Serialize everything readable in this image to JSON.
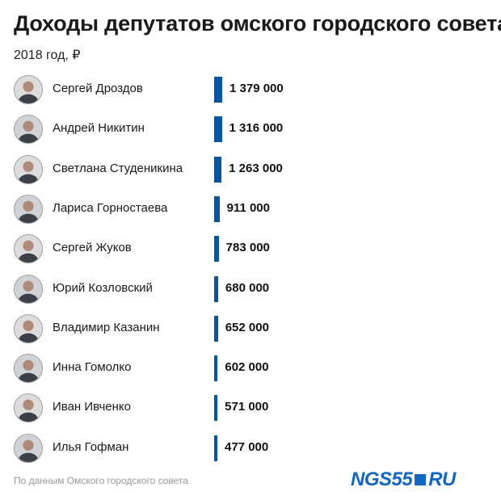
{
  "header": {
    "title": "Доходы депутатов омского городского совета",
    "subtitle": "2018 год, ₽"
  },
  "chart_data": {
    "type": "bar",
    "orientation": "horizontal",
    "title": "Доходы депутатов омского городского совета",
    "subtitle": "2018 год, ₽",
    "categories": [
      "Сергей Дроздов",
      "Андрей Никитин",
      "Светлана Студеникина",
      "Лариса Горностаева",
      "Сергей Жуков",
      "Юрий Козловский",
      "Владимир Казанин",
      "Инна Гомолко",
      "Иван Ивченко",
      "Илья Гофман"
    ],
    "values": [
      1379000,
      1316000,
      1263000,
      911000,
      783000,
      680000,
      652000,
      602000,
      571000,
      477000
    ],
    "value_labels": [
      "1 379 000",
      "1 316 000",
      "1 263 000",
      "911 000",
      "783 000",
      "680 000",
      "652 000",
      "602 000",
      "571 000",
      "477 000"
    ],
    "bar_color": "#0057a8",
    "grid": false,
    "legend": "none"
  },
  "footer": {
    "source": "По данным Омского городского совета",
    "logo_left": "NGS55",
    "logo_right": "RU",
    "logo_color": "#1266c4"
  }
}
